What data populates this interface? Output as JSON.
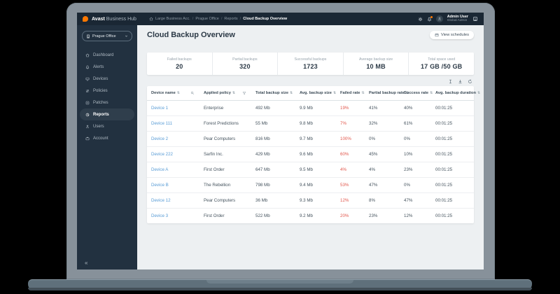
{
  "colors": {
    "accent_orange": "#ff7800",
    "link_blue": "#579bd5",
    "failed_red": "#e2574c",
    "navy": "#1a2734"
  },
  "topbar": {
    "brand_bold": "Avast",
    "brand_rest": " Business Hub",
    "breadcrumb": [
      "Large Business Acc.",
      "Prague Office",
      "Reports",
      "Cloud Backup Overview"
    ],
    "user_name": "Admin User",
    "user_role": "Global Admin"
  },
  "sidebar": {
    "org_selector": "Prague Office",
    "items": [
      {
        "label": "Dashboard"
      },
      {
        "label": "Alerts"
      },
      {
        "label": "Devices"
      },
      {
        "label": "Policies"
      },
      {
        "label": "Patches"
      },
      {
        "label": "Reports",
        "active": true
      },
      {
        "label": "Users"
      },
      {
        "label": "Account"
      }
    ],
    "collapse_glyph": "«"
  },
  "main": {
    "title": "Cloud Backup Overview",
    "view_schedules_label": "View schedules",
    "stats": [
      {
        "label": "Failed backups",
        "value": "20"
      },
      {
        "label": "Partial backups",
        "value": "320"
      },
      {
        "label": "Successful backups",
        "value": "1723"
      },
      {
        "label": "Average backup size",
        "value": "10 MB"
      },
      {
        "label": "Total space used",
        "value": "17 GB /50 GB"
      }
    ]
  },
  "table": {
    "columns": [
      "Device name",
      "Applied policy",
      "Total backup size",
      "Avg. backup size",
      "Failed rate",
      "Partial backup rate",
      "Success rate",
      "Avg. backup duration"
    ],
    "sort_glyph": "⇅",
    "rows": [
      {
        "device": "Device 1",
        "policy": "Enterprise",
        "total": "492 Mb",
        "avg": "9.9 Mb",
        "failed": "19%",
        "partial": "41%",
        "success": "40%",
        "duration": "00:01:25"
      },
      {
        "device": "Device 111",
        "policy": "Forest Predictions",
        "total": "55 Mb",
        "avg": "9.8 Mb",
        "failed": "7%",
        "partial": "32%",
        "success": "61%",
        "duration": "00:01:25"
      },
      {
        "device": "Device 2",
        "policy": "Pear Computers",
        "total": "816 Mb",
        "avg": "9.7 Mb",
        "failed": "100%",
        "partial": "0%",
        "success": "0%",
        "duration": "00:01:25"
      },
      {
        "device": "Device 222",
        "policy": "Sarfin Inc.",
        "total": "429 Mb",
        "avg": "9.6 Mb",
        "failed": "60%",
        "partial": "45%",
        "success": "10%",
        "duration": "00:01:25"
      },
      {
        "device": "Device A",
        "policy": "First Order",
        "total": "647 Mb",
        "avg": "9.5 Mb",
        "failed": "4%",
        "partial": "4%",
        "success": "23%",
        "duration": "00:01:25"
      },
      {
        "device": "Device B",
        "policy": "The Rebellion",
        "total": "798 Mb",
        "avg": "9.4 Mb",
        "failed": "53%",
        "partial": "47%",
        "success": "0%",
        "duration": "00:01:25"
      },
      {
        "device": "Device 12",
        "policy": "Pear Computers",
        "total": "36 Mb",
        "avg": "9.3 Mb",
        "failed": "12%",
        "partial": "8%",
        "success": "47%",
        "duration": "00:01:25"
      },
      {
        "device": "Device 3",
        "policy": "First Order",
        "total": "522 Mb",
        "avg": "9.2 Mb",
        "failed": "20%",
        "partial": "23%",
        "success": "12%",
        "duration": "00:01:25"
      }
    ]
  }
}
